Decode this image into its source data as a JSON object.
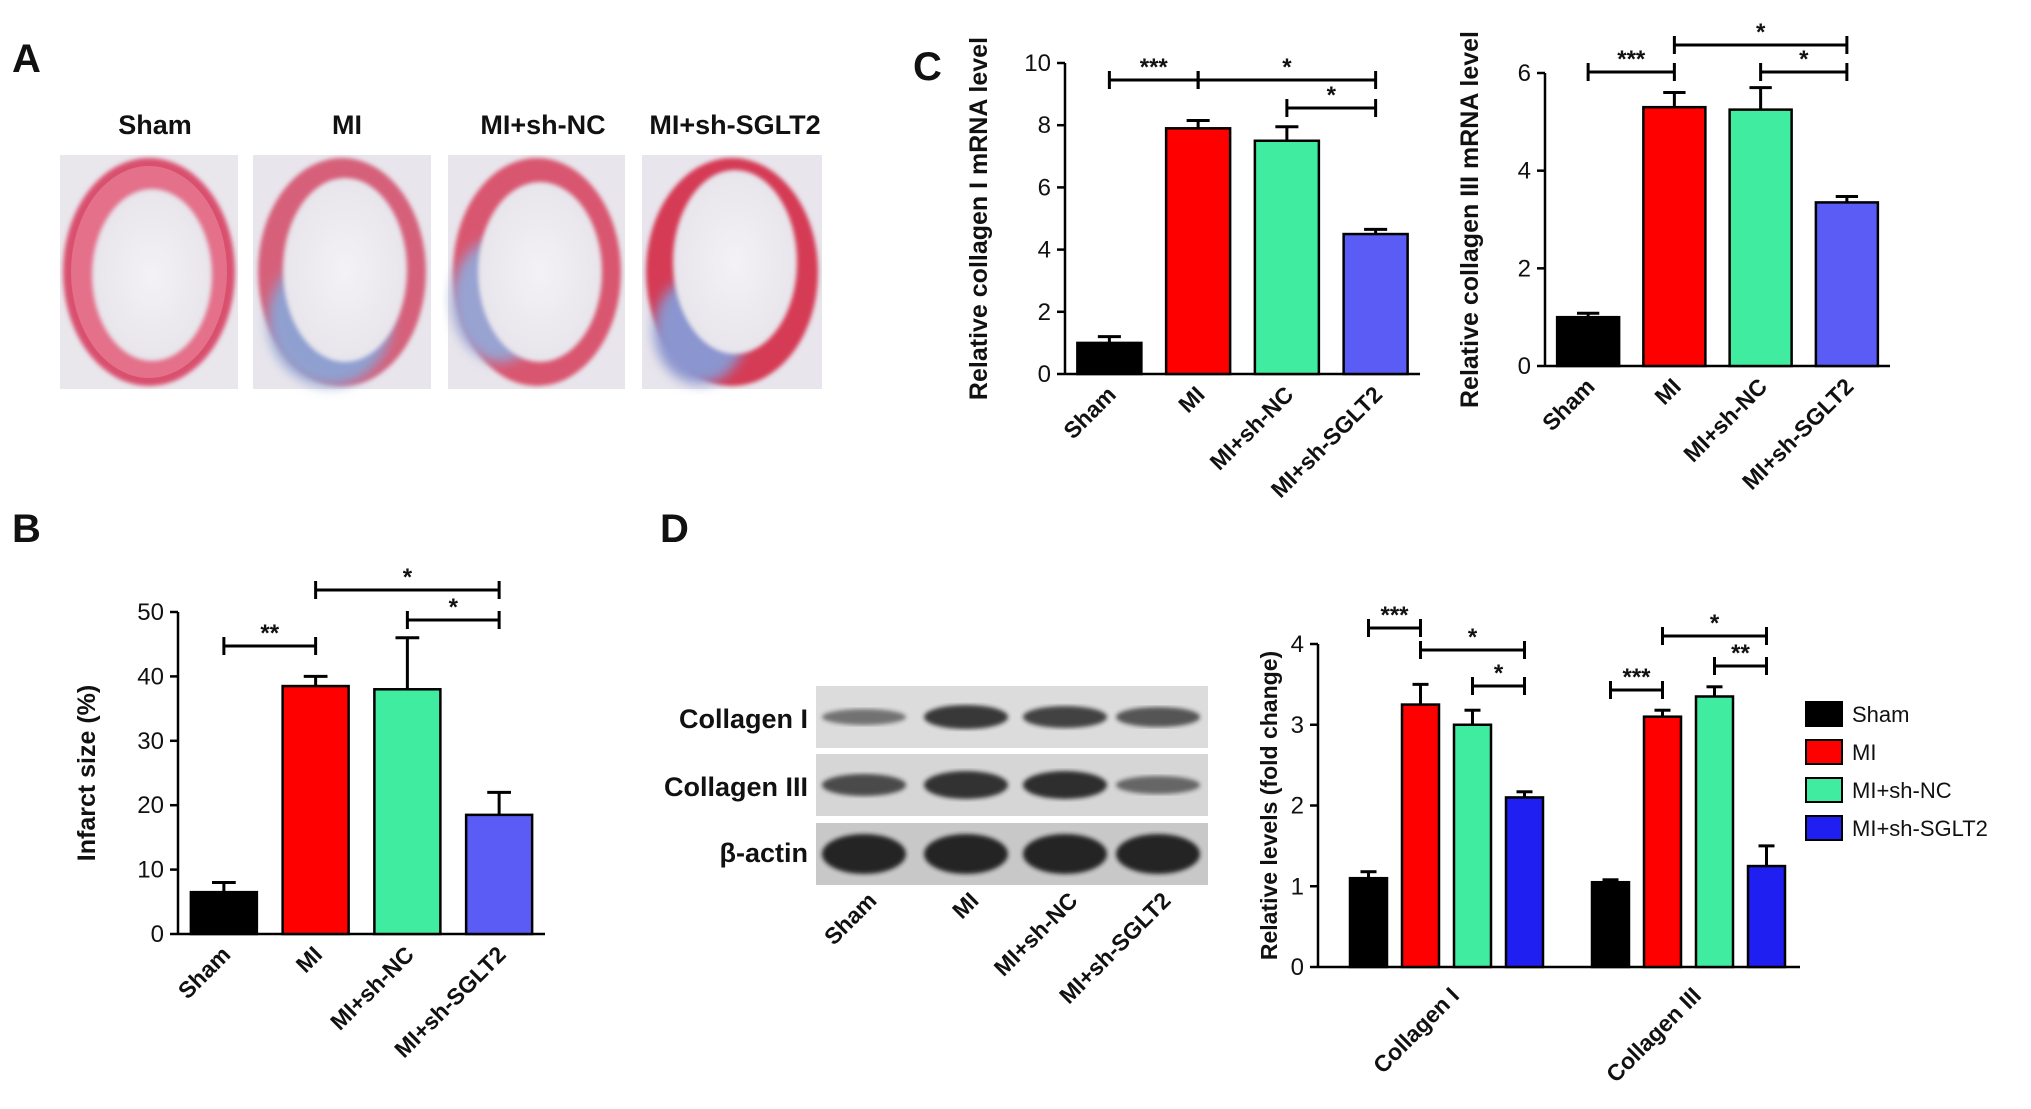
{
  "panels": {
    "A": "A",
    "B": "B",
    "C": "C",
    "D": "D"
  },
  "histology": {
    "headers": [
      "Sham",
      "MI",
      "MI+sh-NC",
      "MI+sh-SGLT2"
    ]
  },
  "blot": {
    "row_labels": [
      "Collagen I",
      "Collagen III",
      "β-actin"
    ],
    "lane_labels": [
      "Sham",
      "MI",
      "MI+sh-NC",
      "MI+sh-SGLT2"
    ]
  },
  "colors": {
    "sham": "#000000",
    "mi": "#ff0000",
    "mi_sh_nc": "#40eca0",
    "mi_sh_sglt2_purple": "#5b5cf6",
    "mi_sh_sglt2_blue": "#1f1ff2"
  },
  "chart_data": [
    {
      "id": "B",
      "type": "bar",
      "categories": [
        "Sham",
        "MI",
        "MI+sh-NC",
        "MI+sh-SGLT2"
      ],
      "values": [
        6.5,
        38.5,
        38,
        18.5
      ],
      "errors": [
        1.5,
        1.5,
        8,
        3.5
      ],
      "ylabel": "Infarct size (%)",
      "ylim": [
        0,
        50
      ],
      "yticks": [
        0,
        10,
        20,
        30,
        40,
        50
      ],
      "significance": [
        {
          "from": 0,
          "to": 1,
          "label": "**"
        },
        {
          "from": 1,
          "to": 3,
          "label": "*"
        },
        {
          "from": 2,
          "to": 3,
          "label": "*"
        }
      ]
    },
    {
      "id": "C1",
      "type": "bar",
      "categories": [
        "Sham",
        "MI",
        "MI+sh-NC",
        "MI+sh-SGLT2"
      ],
      "values": [
        1.0,
        7.9,
        7.5,
        4.5
      ],
      "errors": [
        0.2,
        0.25,
        0.45,
        0.15
      ],
      "ylabel": "Relative collagen I mRNA level",
      "ylim": [
        0,
        10
      ],
      "yticks": [
        0,
        2,
        4,
        6,
        8,
        10
      ],
      "significance": [
        {
          "from": 0,
          "to": 1,
          "label": "***"
        },
        {
          "from": 1,
          "to": 3,
          "label": "*"
        },
        {
          "from": 2,
          "to": 3,
          "label": "*"
        }
      ]
    },
    {
      "id": "C2",
      "type": "bar",
      "categories": [
        "Sham",
        "MI",
        "MI+sh-NC",
        "MI+sh-SGLT2"
      ],
      "values": [
        1.0,
        5.3,
        5.25,
        3.35
      ],
      "errors": [
        0.08,
        0.3,
        0.45,
        0.12
      ],
      "ylabel": "Relative collagen III mRNA level",
      "ylim": [
        0,
        6
      ],
      "yticks": [
        0,
        2,
        4,
        6
      ],
      "significance": [
        {
          "from": 0,
          "to": 1,
          "label": "***"
        },
        {
          "from": 1,
          "to": 3,
          "label": "*"
        },
        {
          "from": 2,
          "to": 3,
          "label": "*"
        }
      ]
    },
    {
      "id": "D",
      "type": "bar",
      "categories": [
        "Collagen I",
        "Collagen III"
      ],
      "series": [
        {
          "name": "Sham",
          "values": [
            1.1,
            1.05
          ],
          "errors": [
            0.08,
            0.03
          ]
        },
        {
          "name": "MI",
          "values": [
            3.25,
            3.1
          ],
          "errors": [
            0.25,
            0.08
          ]
        },
        {
          "name": "MI+sh-NC",
          "values": [
            3.0,
            3.35
          ],
          "errors": [
            0.18,
            0.12
          ]
        },
        {
          "name": "MI+sh-SGLT2",
          "values": [
            2.1,
            1.25
          ],
          "errors": [
            0.07,
            0.25
          ]
        }
      ],
      "ylabel": "Relative levels (fold change)",
      "ylim": [
        0,
        4
      ],
      "yticks": [
        0,
        1,
        2,
        3,
        4
      ],
      "legend": "right",
      "significance": [
        {
          "group": 0,
          "from": 0,
          "to": 1,
          "label": "***"
        },
        {
          "group": 0,
          "from": 1,
          "to": 3,
          "label": "*"
        },
        {
          "group": 0,
          "from": 2,
          "to": 3,
          "label": "*"
        },
        {
          "group": 1,
          "from": 0,
          "to": 1,
          "label": "***"
        },
        {
          "group": 1,
          "from": 1,
          "to": 3,
          "label": "*"
        },
        {
          "group": 1,
          "from": 2,
          "to": 3,
          "label": "**"
        }
      ]
    }
  ]
}
